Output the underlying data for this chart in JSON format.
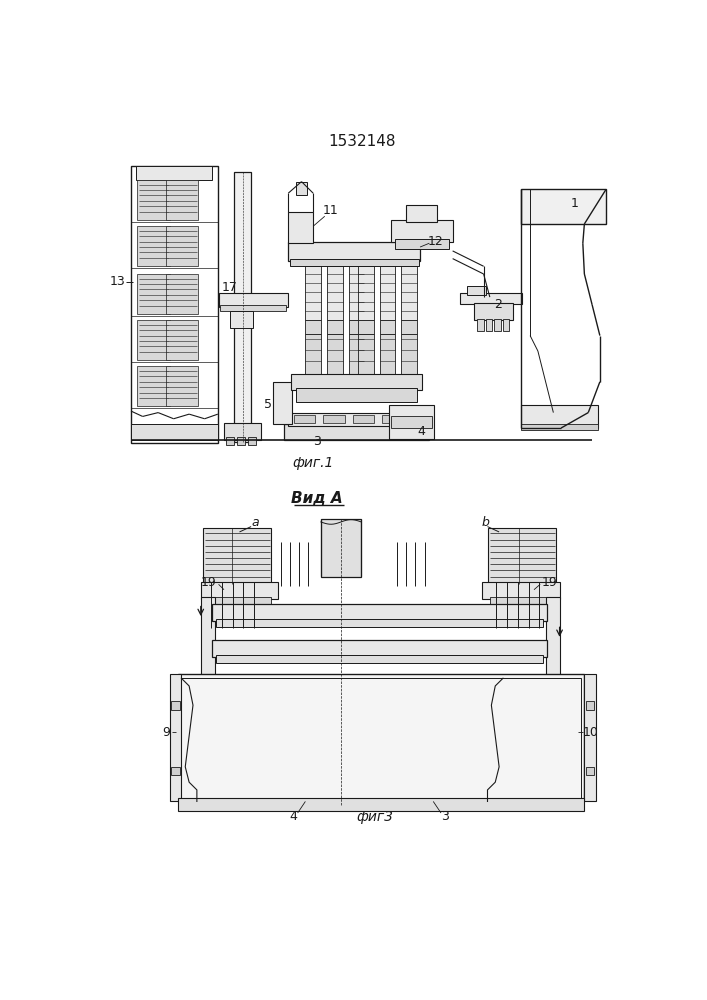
{
  "title": "1532148",
  "fig1_label": "фиг.1",
  "fig3_label": "фиг3",
  "view_label": "Вид A",
  "background": "#ffffff",
  "line_color": "#1a1a1a"
}
